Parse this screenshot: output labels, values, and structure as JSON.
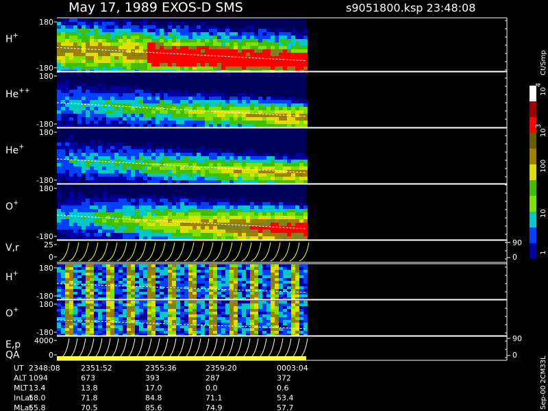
{
  "header": {
    "title": "May 17, 1989   EXOS-D SMS",
    "file": "s9051800.ksp  23:48:08"
  },
  "panels": [
    {
      "label": {
        "base": "H",
        "sup": "+"
      },
      "ticks": [
        "180",
        "-180"
      ]
    },
    {
      "label": {
        "base": "He",
        "sup": "++"
      },
      "ticks": [
        "180",
        "-180"
      ]
    },
    {
      "label": {
        "base": "He",
        "sup": "+"
      },
      "ticks": [
        "180",
        "-180"
      ]
    },
    {
      "label": {
        "base": "O",
        "sup": "+"
      },
      "ticks": [
        "180",
        "-180"
      ]
    },
    {
      "label": {
        "base": "V,r",
        "sup": ""
      },
      "ticks": [
        "25",
        "0"
      ],
      "right_ticks": [
        "90",
        "0"
      ]
    },
    {
      "label": {
        "base": "H",
        "sup": "+"
      },
      "ticks": [
        "180",
        "-180"
      ]
    },
    {
      "label": {
        "base": "O",
        "sup": "+"
      },
      "ticks": [
        "180",
        "-180"
      ]
    },
    {
      "label": {
        "base": "E,p",
        "sup": ""
      },
      "label2": "QA",
      "ticks": [
        "4000",
        "0"
      ],
      "right_ticks": [
        "90",
        "0"
      ]
    }
  ],
  "colorbar": {
    "title": "Ct/Smp",
    "ticks": [
      {
        "base": "10",
        "sup": "4"
      },
      {
        "base": "10",
        "sup": "3"
      },
      {
        "base": "100",
        "sup": ""
      },
      {
        "base": "10",
        "sup": ""
      },
      {
        "base": "1",
        "sup": ""
      }
    ]
  },
  "ephemeris": {
    "rows": [
      [
        "UT",
        "2348:08",
        "2351:52",
        "2355:36",
        "2359:20",
        "0003:04"
      ],
      [
        "ALT",
        "1094",
        "673",
        "393",
        "287",
        "372"
      ],
      [
        "MLT",
        "13.4",
        "13.8",
        "17.0",
        "0.0",
        "0.6"
      ],
      [
        "InLat",
        "58.0",
        "71.8",
        "84.8",
        "71.1",
        "53.4"
      ],
      [
        "MLat",
        "55.8",
        "70.5",
        "85.6",
        "74.9",
        "57.7"
      ]
    ]
  },
  "footer": "Sep-00 2CM33L"
}
